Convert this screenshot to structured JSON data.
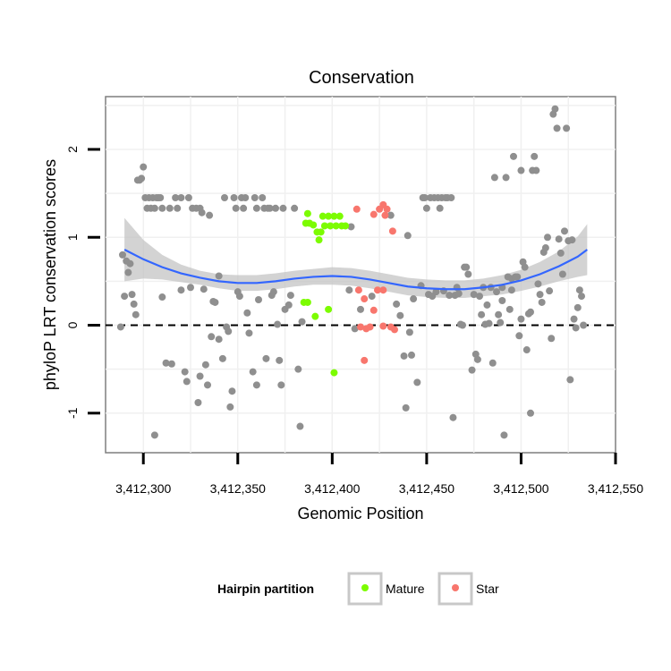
{
  "chart_data": {
    "type": "scatter",
    "title": "Conservation",
    "xlabel": "Genomic Position",
    "ylabel": "phyloP LRT conservation scores",
    "xlim": [
      3412280,
      3412550
    ],
    "ylim": [
      -1.45,
      2.6
    ],
    "x_ticks": [
      3412300,
      3412350,
      3412400,
      3412450,
      3412500,
      3412550
    ],
    "x_tick_labels": [
      "3,412,300",
      "3,412,350",
      "3,412,400",
      "3,412,450",
      "3,412,500",
      "3,412,550"
    ],
    "y_ticks": [
      -1,
      0,
      1,
      2
    ],
    "y_tick_labels": [
      "-1",
      "0",
      "1",
      "2"
    ],
    "grid": true,
    "reference_line": {
      "y": 0,
      "style": "dashed"
    },
    "legend": {
      "title": "Hairpin partition",
      "position": "bottom",
      "entries": [
        {
          "label": "Mature",
          "color": "#7CFC00"
        },
        {
          "label": "Star",
          "color": "#F8766D"
        }
      ]
    },
    "colors": {
      "other": "#8F8F8F",
      "mature": "#7CFC00",
      "star": "#F8766D",
      "smooth_line": "#3366FF",
      "confidence_band": "#C4C4C4"
    },
    "series": [
      {
        "name": "Mature",
        "color": "#7CFC00",
        "points": [
          [
            3412387,
            1.27
          ],
          [
            3412386,
            1.16
          ],
          [
            3412388,
            1.16
          ],
          [
            3412390,
            1.14
          ],
          [
            3412392,
            1.06
          ],
          [
            3412394,
            1.06
          ],
          [
            3412393,
            0.97
          ],
          [
            3412395,
            1.24
          ],
          [
            3412398,
            1.24
          ],
          [
            3412401,
            1.24
          ],
          [
            3412404,
            1.24
          ],
          [
            3412396,
            1.13
          ],
          [
            3412399,
            1.13
          ],
          [
            3412402,
            1.13
          ],
          [
            3412405,
            1.13
          ],
          [
            3412407,
            1.13
          ],
          [
            3412385,
            0.26
          ],
          [
            3412387,
            0.26
          ],
          [
            3412391,
            0.1
          ],
          [
            3412398,
            0.18
          ],
          [
            3412401,
            -0.54
          ]
        ]
      },
      {
        "name": "Star",
        "color": "#F8766D",
        "points": [
          [
            3412413,
            1.32
          ],
          [
            3412422,
            1.26
          ],
          [
            3412425,
            1.32
          ],
          [
            3412427,
            1.37
          ],
          [
            3412429,
            1.32
          ],
          [
            3412428,
            1.25
          ],
          [
            3412432,
            1.07
          ],
          [
            3412414,
            0.4
          ],
          [
            3412424,
            0.4
          ],
          [
            3412427,
            0.4
          ],
          [
            3412417,
            0.3
          ],
          [
            3412422,
            0.17
          ],
          [
            3412415,
            -0.02
          ],
          [
            3412418,
            -0.04
          ],
          [
            3412420,
            -0.02
          ],
          [
            3412427,
            -0.01
          ],
          [
            3412431,
            -0.02
          ],
          [
            3412433,
            -0.05
          ],
          [
            3412417,
            -0.4
          ]
        ]
      },
      {
        "name": "",
        "color": "#8F8F8F",
        "points": [
          [
            3412288,
            -0.02
          ],
          [
            3412289,
            0.8
          ],
          [
            3412290,
            0.33
          ],
          [
            3412291,
            0.73
          ],
          [
            3412292,
            0.6
          ],
          [
            3412293,
            0.7
          ],
          [
            3412294,
            0.35
          ],
          [
            3412295,
            0.24
          ],
          [
            3412296,
            0.12
          ],
          [
            3412297,
            1.65
          ],
          [
            3412298,
            1.65
          ],
          [
            3412299,
            1.67
          ],
          [
            3412300,
            1.8
          ],
          [
            3412301,
            1.45
          ],
          [
            3412302,
            1.33
          ],
          [
            3412303,
            1.45
          ],
          [
            3412304,
            1.33
          ],
          [
            3412305,
            1.45
          ],
          [
            3412306,
            1.33
          ],
          [
            3412307,
            1.45
          ],
          [
            3412308,
            1.45
          ],
          [
            3412309,
            1.45
          ],
          [
            3412310,
            1.33
          ],
          [
            3412310,
            0.32
          ],
          [
            3412312,
            -0.43
          ],
          [
            3412314,
            1.33
          ],
          [
            3412315,
            -0.44
          ],
          [
            3412317,
            1.45
          ],
          [
            3412318,
            1.33
          ],
          [
            3412320,
            1.45
          ],
          [
            3412322,
            -0.53
          ],
          [
            3412323,
            -0.64
          ],
          [
            3412324,
            1.45
          ],
          [
            3412326,
            1.33
          ],
          [
            3412328,
            1.33
          ],
          [
            3412329,
            -0.88
          ],
          [
            3412330,
            1.33
          ],
          [
            3412331,
            1.28
          ],
          [
            3412332,
            0.41
          ],
          [
            3412333,
            -0.45
          ],
          [
            3412335,
            1.25
          ],
          [
            3412336,
            -0.13
          ],
          [
            3412337,
            0.27
          ],
          [
            3412338,
            0.26
          ],
          [
            3412340,
            -0.16
          ],
          [
            3412342,
            -0.38
          ],
          [
            3412343,
            1.45
          ],
          [
            3412344,
            -0.02
          ],
          [
            3412346,
            -0.93
          ],
          [
            3412347,
            -0.75
          ],
          [
            3412348,
            1.45
          ],
          [
            3412349,
            1.33
          ],
          [
            3412350,
            0.38
          ],
          [
            3412351,
            0.33
          ],
          [
            3412352,
            1.45
          ],
          [
            3412353,
            1.33
          ],
          [
            3412354,
            1.45
          ],
          [
            3412355,
            0.14
          ],
          [
            3412356,
            -0.09
          ],
          [
            3412358,
            -0.53
          ],
          [
            3412359,
            1.45
          ],
          [
            3412360,
            1.33
          ],
          [
            3412361,
            0.29
          ],
          [
            3412363,
            1.45
          ],
          [
            3412364,
            1.33
          ],
          [
            3412366,
            1.33
          ],
          [
            3412367,
            1.33
          ],
          [
            3412368,
            0.34
          ],
          [
            3412370,
            1.33
          ],
          [
            3412371,
            0.01
          ],
          [
            3412372,
            -0.4
          ],
          [
            3412373,
            -0.68
          ],
          [
            3412374,
            1.33
          ],
          [
            3412375,
            0.18
          ],
          [
            3412377,
            0.23
          ],
          [
            3412378,
            0.34
          ],
          [
            3412380,
            1.33
          ],
          [
            3412382,
            -0.5
          ],
          [
            3412383,
            -1.15
          ],
          [
            3412384,
            0.04
          ],
          [
            3412306,
            -1.25
          ],
          [
            3412320,
            0.4
          ],
          [
            3412325,
            0.43
          ],
          [
            3412330,
            -0.58
          ],
          [
            3412334,
            -0.68
          ],
          [
            3412340,
            0.56
          ],
          [
            3412345,
            -0.07
          ],
          [
            3412360,
            -0.68
          ],
          [
            3412365,
            -0.38
          ],
          [
            3412369,
            0.38
          ],
          [
            3412409,
            0.4
          ],
          [
            3412410,
            1.12
          ],
          [
            3412412,
            -0.04
          ],
          [
            3412415,
            0.18
          ],
          [
            3412421,
            0.33
          ],
          [
            3412431,
            1.25
          ],
          [
            3412434,
            0.24
          ],
          [
            3412436,
            0.11
          ],
          [
            3412438,
            -0.35
          ],
          [
            3412439,
            -0.94
          ],
          [
            3412440,
            1.02
          ],
          [
            3412441,
            -0.08
          ],
          [
            3412442,
            -0.34
          ],
          [
            3412443,
            0.3
          ],
          [
            3412445,
            -0.65
          ],
          [
            3412447,
            0.45
          ],
          [
            3412448,
            1.45
          ],
          [
            3412449,
            1.45
          ],
          [
            3412450,
            1.33
          ],
          [
            3412451,
            0.35
          ],
          [
            3412452,
            1.45
          ],
          [
            3412453,
            0.33
          ],
          [
            3412454,
            1.45
          ],
          [
            3412455,
            0.38
          ],
          [
            3412456,
            1.45
          ],
          [
            3412457,
            1.33
          ],
          [
            3412458,
            1.45
          ],
          [
            3412459,
            0.39
          ],
          [
            3412460,
            1.45
          ],
          [
            3412461,
            1.45
          ],
          [
            3412462,
            0.34
          ],
          [
            3412463,
            1.45
          ],
          [
            3412464,
            -1.05
          ],
          [
            3412465,
            0.34
          ],
          [
            3412466,
            0.43
          ],
          [
            3412467,
            0.36
          ],
          [
            3412468,
            0.01
          ],
          [
            3412469,
            0.0
          ],
          [
            3412470,
            0.66
          ],
          [
            3412471,
            0.66
          ],
          [
            3412472,
            0.58
          ],
          [
            3412474,
            -0.51
          ],
          [
            3412475,
            0.35
          ],
          [
            3412476,
            -0.33
          ],
          [
            3412477,
            -0.39
          ],
          [
            3412478,
            0.33
          ],
          [
            3412479,
            0.12
          ],
          [
            3412480,
            0.43
          ],
          [
            3412481,
            0.01
          ],
          [
            3412482,
            0.23
          ],
          [
            3412483,
            0.02
          ],
          [
            3412484,
            0.43
          ],
          [
            3412485,
            -0.43
          ],
          [
            3412486,
            1.68
          ],
          [
            3412487,
            0.38
          ],
          [
            3412488,
            0.12
          ],
          [
            3412489,
            0.03
          ],
          [
            3412490,
            0.28
          ],
          [
            3412491,
            -1.25
          ],
          [
            3412492,
            1.68
          ],
          [
            3412493,
            0.55
          ],
          [
            3412494,
            0.18
          ],
          [
            3412495,
            0.53
          ],
          [
            3412496,
            1.92
          ],
          [
            3412497,
            0.55
          ],
          [
            3412498,
            0.55
          ],
          [
            3412499,
            -0.12
          ],
          [
            3412500,
            1.76
          ],
          [
            3412501,
            0.72
          ],
          [
            3412502,
            0.66
          ],
          [
            3412503,
            -0.28
          ],
          [
            3412504,
            0.13
          ],
          [
            3412505,
            -1.0
          ],
          [
            3412506,
            1.76
          ],
          [
            3412507,
            1.92
          ],
          [
            3412508,
            1.76
          ],
          [
            3412509,
            0.47
          ],
          [
            3412510,
            0.35
          ],
          [
            3412511,
            0.26
          ],
          [
            3412512,
            0.83
          ],
          [
            3412513,
            0.88
          ],
          [
            3412514,
            1.0
          ],
          [
            3412515,
            0.39
          ],
          [
            3412516,
            -0.15
          ],
          [
            3412517,
            2.4
          ],
          [
            3412518,
            2.46
          ],
          [
            3412519,
            2.24
          ],
          [
            3412520,
            0.98
          ],
          [
            3412521,
            0.82
          ],
          [
            3412522,
            0.58
          ],
          [
            3412523,
            1.07
          ],
          [
            3412524,
            2.24
          ],
          [
            3412525,
            0.96
          ],
          [
            3412526,
            -0.62
          ],
          [
            3412527,
            0.97
          ],
          [
            3412528,
            0.07
          ],
          [
            3412529,
            -0.03
          ],
          [
            3412530,
            0.2
          ],
          [
            3412531,
            0.4
          ],
          [
            3412532,
            0.33
          ],
          [
            3412533,
            0.0
          ],
          [
            3412490,
            0.43
          ],
          [
            3412495,
            0.4
          ],
          [
            3412500,
            0.07
          ],
          [
            3412505,
            0.15
          ]
        ]
      }
    ],
    "smooth": {
      "x": [
        3412290,
        3412300,
        3412310,
        3412320,
        3412330,
        3412340,
        3412350,
        3412360,
        3412370,
        3412380,
        3412390,
        3412400,
        3412410,
        3412420,
        3412430,
        3412440,
        3412450,
        3412460,
        3412470,
        3412480,
        3412490,
        3412500,
        3412510,
        3412520,
        3412530,
        3412535
      ],
      "y": [
        0.86,
        0.75,
        0.66,
        0.59,
        0.54,
        0.5,
        0.48,
        0.48,
        0.5,
        0.53,
        0.55,
        0.56,
        0.55,
        0.52,
        0.48,
        0.44,
        0.42,
        0.41,
        0.41,
        0.43,
        0.46,
        0.51,
        0.58,
        0.67,
        0.78,
        0.86
      ],
      "lower": [
        0.5,
        0.53,
        0.52,
        0.49,
        0.46,
        0.42,
        0.39,
        0.39,
        0.41,
        0.44,
        0.46,
        0.46,
        0.45,
        0.42,
        0.38,
        0.34,
        0.32,
        0.31,
        0.31,
        0.33,
        0.35,
        0.39,
        0.44,
        0.5,
        0.55,
        0.57
      ],
      "upper": [
        1.22,
        0.97,
        0.8,
        0.69,
        0.62,
        0.58,
        0.57,
        0.57,
        0.59,
        0.62,
        0.64,
        0.66,
        0.65,
        0.62,
        0.58,
        0.54,
        0.52,
        0.51,
        0.51,
        0.53,
        0.57,
        0.63,
        0.72,
        0.84,
        1.01,
        1.15
      ]
    }
  }
}
